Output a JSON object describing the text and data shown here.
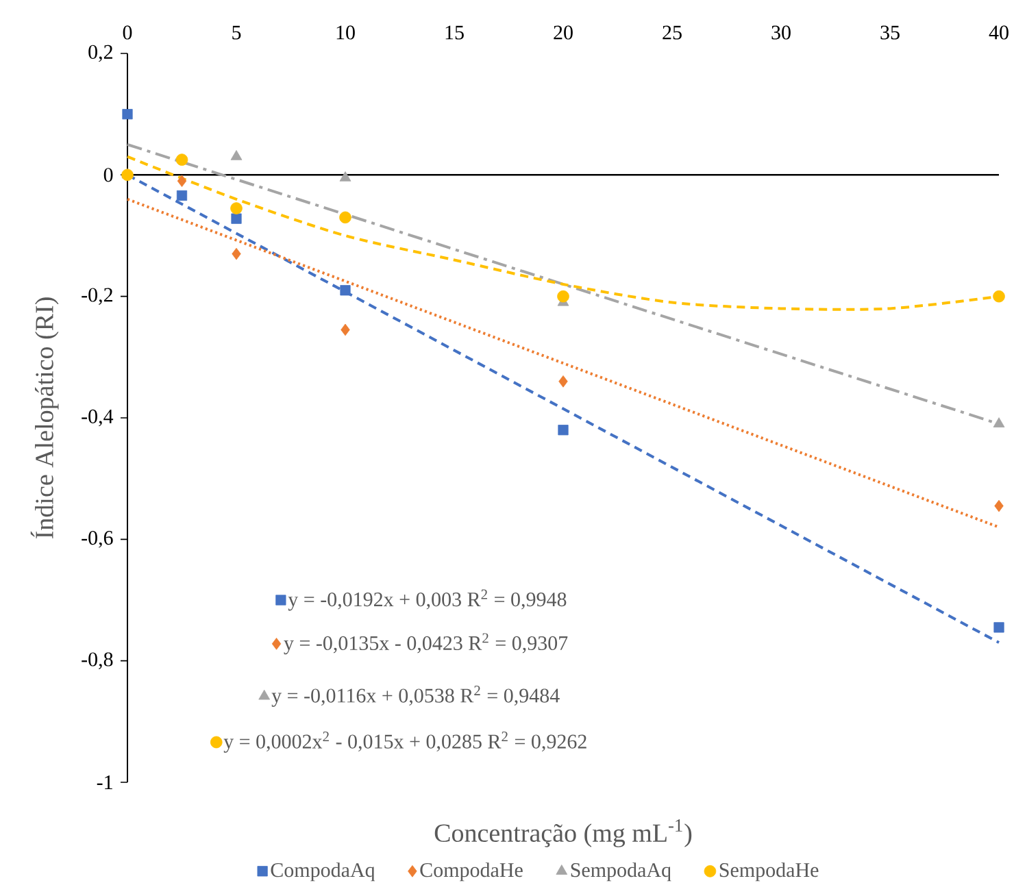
{
  "chart_data": {
    "type": "scatter",
    "xlabel": "Concentração (mg mL$^{-1}$)",
    "ylabel": "Índice Alelopático (RI)",
    "x": [
      0,
      2.5,
      5,
      10,
      20,
      40
    ],
    "xlim": [
      0,
      40
    ],
    "xticks": [
      0,
      5,
      10,
      15,
      20,
      25,
      30,
      35,
      40
    ],
    "ylim": [
      -1,
      0.2
    ],
    "yticks": [
      {
        "value": 0.2,
        "label": "0,2"
      },
      0,
      {
        "value": -0.2,
        "label": "-0,2"
      },
      {
        "value": -0.4,
        "label": "-0,4"
      },
      {
        "value": -0.6,
        "label": "-0,6"
      },
      {
        "value": -0.8,
        "label": "-0,8"
      },
      -1
    ],
    "grid": false,
    "legend": "bottom",
    "ref_lines": [
      {
        "axis": "y",
        "value": 0,
        "color": "#000000",
        "line_style": "solid"
      }
    ],
    "series": [
      {
        "name": "CompodaAq",
        "color": "#4472c4",
        "marker": "square",
        "values": [
          0.1,
          -0.034,
          -0.072,
          -0.19,
          -0.42,
          -0.745
        ]
      },
      {
        "name": "CompodaHe",
        "color": "#ed7d31",
        "marker": "diamond",
        "values": [
          null,
          -0.01,
          -0.13,
          -0.255,
          -0.34,
          -0.545
        ]
      },
      {
        "name": "SempodaAq",
        "color": "#a5a5a5",
        "marker": "triangle",
        "values": [
          0,
          null,
          0.03,
          -0.005,
          -0.21,
          -0.41
        ]
      },
      {
        "name": "SempodaHe",
        "color": "#ffc000",
        "marker": "circle",
        "values": [
          0,
          0.025,
          -0.055,
          -0.07,
          -0.2,
          -0.2
        ]
      },
      {
        "name": "y = -0,0192x + 0,003 R$^{2}$ = 0,9948",
        "type": "line",
        "color": "#4472c4",
        "line_style": "dashed",
        "marker": "none",
        "x": [
          0,
          40
        ],
        "values": [
          0,
          -0.77
        ]
      },
      {
        "name": "y = -0,0135x - 0,0423 R$^{2}$ = 0,9307",
        "type": "line",
        "color": "#ed7d31",
        "line_style": "dotted",
        "marker": "none",
        "x": [
          0,
          40
        ],
        "values": [
          -0.04,
          -0.58
        ]
      },
      {
        "name": "y = -0,0116x + 0,0538 R$^{2}$ = 0,9484",
        "type": "line",
        "color": "#a5a5a5",
        "line_style": "dashdot",
        "marker": "none",
        "x": [
          0,
          40
        ],
        "values": [
          0.05,
          -0.41
        ]
      },
      {
        "name": "y = 0,0002x$^{2}$ - 0,015x + 0,0285 R$^{2}$ = 0,9262",
        "type": "line",
        "color": "#ffc000",
        "line_style": "dashed",
        "marker": "none",
        "x": [
          0,
          5,
          10,
          15,
          20,
          25,
          30,
          35,
          40
        ],
        "values": [
          0.03,
          -0.04,
          -0.1,
          -0.14,
          -0.18,
          -0.21,
          -0.22,
          -0.22,
          -0.2
        ]
      }
    ]
  }
}
